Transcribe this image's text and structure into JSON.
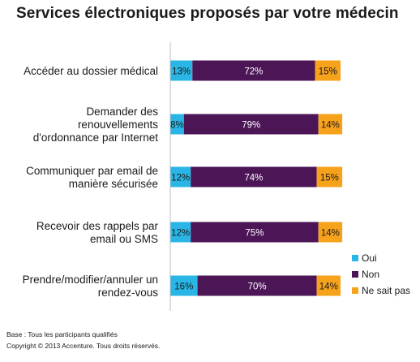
{
  "chart_data": {
    "type": "bar",
    "stacked": true,
    "orientation": "horizontal",
    "percent": true,
    "title": "Services électroniques proposés par votre médecin",
    "categories": [
      [
        "Accéder au dossier médical"
      ],
      [
        "Demander des",
        "renouvellements",
        "d'ordonnance par Internet"
      ],
      [
        "Communiquer par email de",
        "manière sécurisée"
      ],
      [
        "Recevoir des rappels par",
        "email ou SMS"
      ],
      [
        "Prendre/modifier/annuler un",
        "rendez-vous"
      ]
    ],
    "series": [
      {
        "name": "Oui",
        "color": "#29b6e6",
        "values": [
          13,
          8,
          12,
          12,
          16
        ]
      },
      {
        "name": "Non",
        "color": "#4b1556",
        "values": [
          72,
          79,
          74,
          75,
          70
        ]
      },
      {
        "name": "Ne sait pas",
        "color": "#f7a21b",
        "values": [
          15,
          14,
          15,
          14,
          14
        ]
      }
    ],
    "xlim": [
      0,
      100
    ],
    "grid": false,
    "legend": "bottom-right"
  },
  "footnotes": {
    "base": "Base : Tous les participants qualifiés",
    "copyright": "Copyright © 2013 Accenture. Tous droits réservés."
  }
}
